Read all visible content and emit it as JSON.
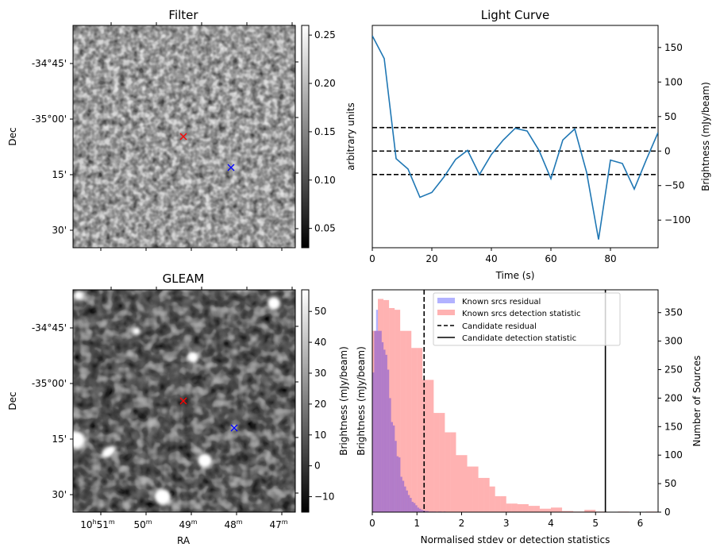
{
  "chart_data": [
    {
      "type": "heatmap",
      "title": "Filter",
      "ylabel": "Dec",
      "xlabel": "",
      "ytick_labels": [
        "-34°45'",
        "-35°00'",
        "15'",
        "30'"
      ],
      "colorbar": {
        "label": "arbitrary units",
        "ticks": [
          "0.05",
          "0.10",
          "0.15",
          "0.20",
          "0.25"
        ],
        "range": [
          0.03,
          0.26
        ],
        "colormap": "gray"
      },
      "markers": [
        {
          "name": "candidate",
          "symbol": "x",
          "color": "#ff0000",
          "ra_min": 49.1,
          "dec_arcmin_offset": 6
        },
        {
          "name": "reference",
          "symbol": "x",
          "color": "#0000ff",
          "ra_min": 48.1,
          "dec_arcmin_offset": 14
        }
      ]
    },
    {
      "type": "line",
      "title": "Light Curve",
      "xlabel": "Time (s)",
      "ylabel": "Brightness (mJy/beam)",
      "xlim": [
        0,
        96
      ],
      "ylim": [
        -140,
        182
      ],
      "xticks": [
        0,
        20,
        40,
        60,
        80
      ],
      "yticks": [
        150,
        100,
        50,
        0,
        -50,
        -100
      ],
      "ytick_labels": [
        "150",
        "100",
        "50",
        "0",
        "−50",
        "−100"
      ],
      "line_color": "#1f77b4",
      "x": [
        0,
        4,
        8,
        12,
        16,
        20,
        24,
        28,
        32,
        36,
        40,
        44,
        48,
        52,
        56,
        60,
        64,
        68,
        72,
        76,
        80,
        84,
        88,
        92,
        96
      ],
      "y": [
        167,
        134,
        -11,
        -26,
        -67,
        -60,
        -38,
        -12,
        1,
        -34,
        -5,
        16,
        33,
        29,
        1,
        -40,
        16,
        32,
        -31,
        -128,
        -13,
        -18,
        -55,
        -13,
        27
      ],
      "hlines": [
        {
          "y": 34,
          "style": "dashed"
        },
        {
          "y": 0,
          "style": "dashed"
        },
        {
          "y": -34,
          "style": "dashed"
        }
      ]
    },
    {
      "type": "heatmap",
      "title": "GLEAM",
      "xlabel": "RA",
      "ylabel": "Dec",
      "xtick_labels": [
        {
          "h": "10",
          "m": "51"
        },
        {
          "h": "",
          "m": "50"
        },
        {
          "h": "",
          "m": "49"
        },
        {
          "h": "",
          "m": "48"
        },
        {
          "h": "",
          "m": "47"
        }
      ],
      "ytick_labels": [
        "-34°45'",
        "-35°00'",
        "15'",
        "30'"
      ],
      "colorbar": {
        "label": "Brightness (mJy/beam)",
        "ticks": [
          "50",
          "40",
          "30",
          "20",
          "10",
          "0",
          "−10"
        ],
        "range": [
          -15,
          57
        ],
        "colormap": "gray"
      },
      "markers": [
        {
          "name": "candidate",
          "symbol": "x",
          "color": "#ff0000"
        },
        {
          "name": "reference",
          "symbol": "x",
          "color": "#0000ff"
        }
      ]
    },
    {
      "type": "bar",
      "subtype": "histogram",
      "xlabel": "Normalised stdev or detection statistics",
      "ylabel_left": "Brightness (mJy/beam)",
      "ylabel_right": "Number of Sources",
      "xlim": [
        0,
        6.4
      ],
      "ylim": [
        0,
        390
      ],
      "xticks": [
        0,
        1,
        2,
        3,
        4,
        5,
        6
      ],
      "yticks": [
        0,
        50,
        100,
        150,
        200,
        250,
        300,
        350
      ],
      "legend_position": "top-center",
      "legend": [
        {
          "label": "Known srcs residual",
          "kind": "patch",
          "color": "#b3b3ff"
        },
        {
          "label": "Known srcs detection statistic",
          "kind": "patch",
          "color": "#ffb3b3"
        },
        {
          "label": "Candidate residual",
          "kind": "dashed-line",
          "color": "#000000"
        },
        {
          "label": "Candidate detection statistic",
          "kind": "solid-line",
          "color": "#000000"
        }
      ],
      "series": [
        {
          "name": "Known srcs detection statistic",
          "color": "#ff0000",
          "alpha": 0.3,
          "bin_start": 0.0,
          "bin_width": 0.125,
          "values": [
            318,
            374,
            372,
            358,
            355,
            318,
            318,
            288,
            288,
            232,
            232,
            174,
            174,
            140,
            140,
            100,
            100,
            80,
            80,
            60,
            60,
            45,
            28,
            28,
            15,
            15,
            14,
            14,
            11,
            11,
            6,
            6,
            8,
            8,
            2,
            2,
            1,
            1,
            4,
            4,
            1,
            1,
            0,
            0,
            1,
            1,
            0,
            0,
            0,
            1,
            1,
            0,
            0,
            0,
            1,
            2,
            0,
            0,
            0,
            0,
            0,
            0,
            0,
            0,
            0,
            0,
            0,
            0,
            0,
            0,
            0,
            0,
            1,
            2,
            0,
            0,
            0,
            0,
            0,
            0,
            0,
            0,
            0,
            0,
            0,
            2,
            3,
            0,
            0,
            0,
            0,
            0
          ],
          "note": "fine bins approximated"
        },
        {
          "name": "Known srcs residual",
          "color": "#0000ff",
          "alpha": 0.3,
          "bin_start": 0.0,
          "bin_width": 0.042,
          "values": [
            245,
            318,
            355,
            318,
            318,
            298,
            285,
            276,
            250,
            200,
            158,
            152,
            125,
            98,
            96,
            62,
            55,
            45,
            38,
            30,
            25,
            18,
            16,
            12,
            8,
            6,
            4,
            3,
            2,
            2,
            1,
            1,
            1,
            1,
            0,
            1,
            1,
            0,
            1,
            0,
            0,
            0,
            0,
            0,
            0,
            0,
            0,
            0,
            0
          ]
        }
      ],
      "vlines": [
        {
          "name": "Candidate residual",
          "x": 1.16,
          "style": "dashed"
        },
        {
          "name": "Candidate detection statistic",
          "x": 5.22,
          "style": "solid"
        }
      ]
    }
  ]
}
